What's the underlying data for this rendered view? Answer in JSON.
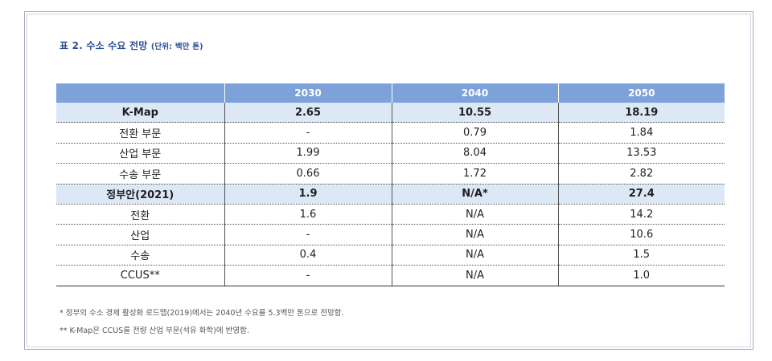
{
  "title": {
    "main": "표 2. 수소 수요 전망",
    "unit": "(단위: 백만 톤)"
  },
  "table": {
    "headers": [
      "",
      "2030",
      "2040",
      "2050"
    ],
    "rows": [
      {
        "group": true,
        "cells": [
          "K-Map",
          "2.65",
          "10.55",
          "18.19"
        ]
      },
      {
        "group": false,
        "cells": [
          "전환 부문",
          "-",
          "0.79",
          "1.84"
        ]
      },
      {
        "group": false,
        "cells": [
          "산업 부문",
          "1.99",
          "8.04",
          "13.53"
        ]
      },
      {
        "group": false,
        "cells": [
          "수송 부문",
          "0.66",
          "1.72",
          "2.82"
        ]
      },
      {
        "group": true,
        "cells": [
          "정부안(2021)",
          "1.9",
          "N/A*",
          "27.4"
        ]
      },
      {
        "group": false,
        "cells": [
          "전환",
          "1.6",
          "N/A",
          "14.2"
        ]
      },
      {
        "group": false,
        "cells": [
          "산업",
          "-",
          "N/A",
          "10.6"
        ]
      },
      {
        "group": false,
        "cells": [
          "수송",
          "0.4",
          "N/A",
          "1.5"
        ]
      },
      {
        "group": false,
        "cells": [
          "CCUS**",
          "-",
          "N/A",
          "1.0"
        ]
      }
    ]
  },
  "notes": [
    "* 정부의 수소 경제 활성화 로드맵(2019)에서는 2040년 수요를 5.3백만 톤으로 전망함.",
    "** K-Map은 CCUS를 전량 산업 부문(석유 화학)에 반영함."
  ],
  "colors": {
    "header_bg": "#7ca2d9",
    "group_row_bg": "#dde8f6",
    "title_text": "#2a4f96",
    "frame_border": "#a9a9c8"
  }
}
